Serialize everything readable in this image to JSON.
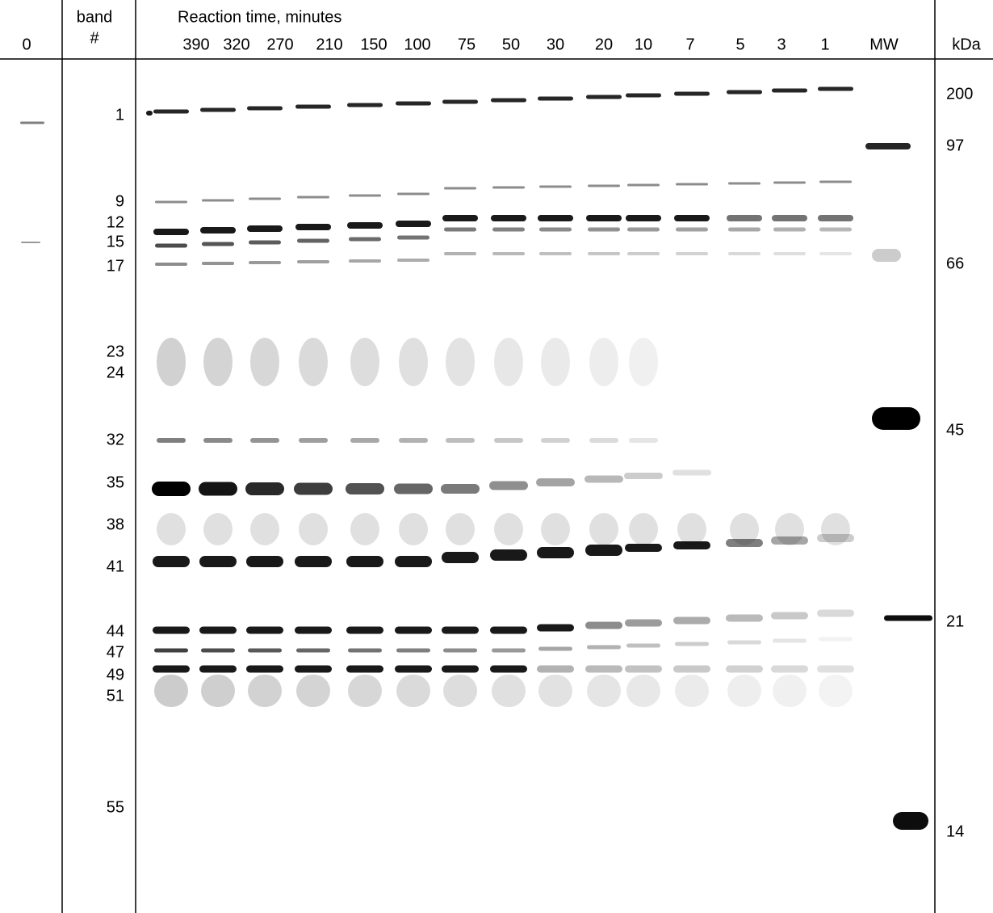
{
  "header": {
    "lane_0": "0",
    "band_title": "band",
    "band_hash": "#",
    "reaction_title": "Reaction time, minutes",
    "kda_title": "kDa"
  },
  "lanes": [
    "390",
    "320",
    "270",
    "210",
    "150",
    "100",
    "75",
    "50",
    "30",
    "20",
    "10",
    "7",
    "5",
    "3",
    "1",
    "MW"
  ],
  "band_numbers": [
    "1",
    "9",
    "12",
    "15",
    "17",
    "23",
    "24",
    "32",
    "35",
    "38",
    "41",
    "44",
    "47",
    "49",
    "51",
    "55"
  ],
  "markers": [
    "200",
    "97",
    "66",
    "45",
    "21",
    "14"
  ]
}
